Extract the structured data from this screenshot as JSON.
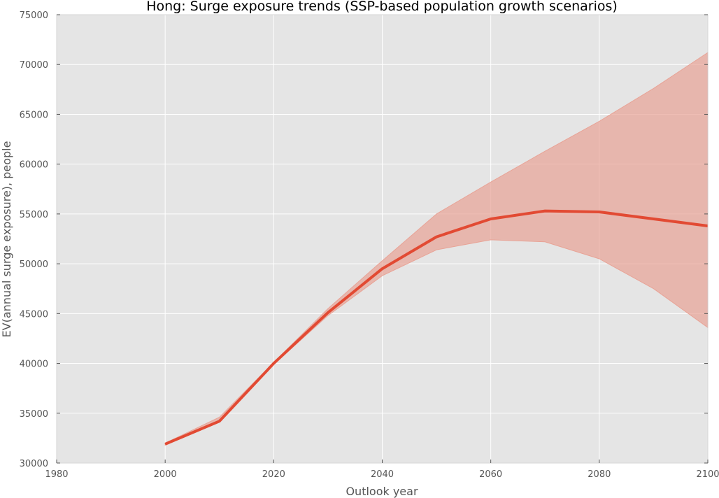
{
  "chart_data": {
    "type": "line",
    "title": "Hong: Surge exposure trends (SSP-based population growth scenarios)",
    "xlabel": "Outlook year",
    "ylabel": "EV(annual surge exposure), people",
    "xlim": [
      1980,
      2100
    ],
    "ylim": [
      30000,
      75000
    ],
    "xticks": [
      "1980",
      "2000",
      "2020",
      "2040",
      "2060",
      "2080",
      "2100"
    ],
    "yticks": [
      "30000",
      "35000",
      "40000",
      "45000",
      "50000",
      "55000",
      "60000",
      "65000",
      "70000",
      "75000"
    ],
    "grid": true,
    "legend": "none",
    "colors": {
      "background": "#e5e5e5",
      "grid": "#ffffff",
      "line": "#e24a33",
      "band": "#e8a396"
    },
    "x": [
      2000,
      2010,
      2020,
      2030,
      2040,
      2050,
      2060,
      2070,
      2080,
      2090,
      2100
    ],
    "series": [
      {
        "values": [
          31900,
          34200,
          40000,
          45100,
          49500,
          52700,
          54500,
          55300,
          55200,
          54500,
          53800
        ]
      }
    ],
    "band": {
      "upper": [
        32000,
        34600,
        40100,
        45500,
        50300,
        55000,
        58200,
        61300,
        64300,
        67600,
        71200
      ],
      "lower": [
        31800,
        34100,
        39900,
        44800,
        48800,
        51400,
        52400,
        52200,
        50500,
        47500,
        43600
      ]
    }
  }
}
